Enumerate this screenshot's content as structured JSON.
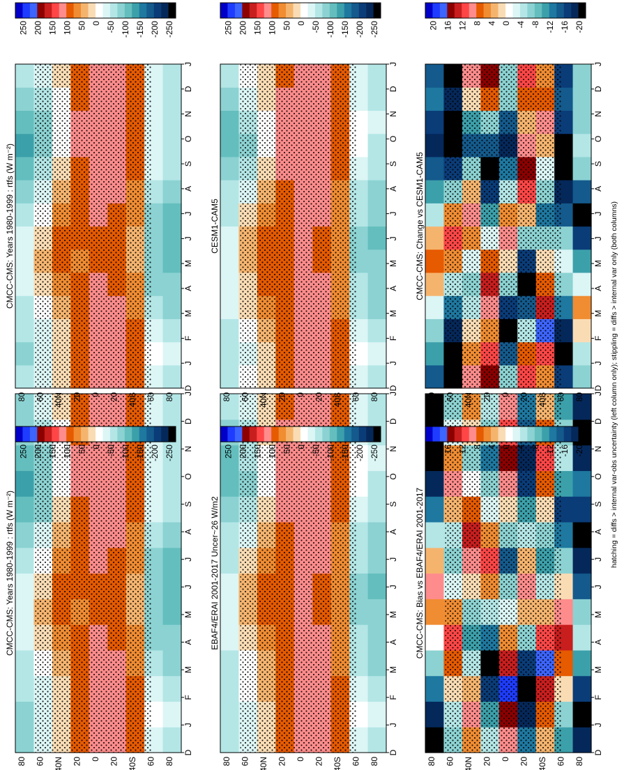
{
  "figure": {
    "footer": "hatching = diffs > internal var-obs uncertainty (left column only); stippling = diffs > internal var only (both columns)"
  },
  "chart_data": [
    {
      "type": "heatmap",
      "panel": "top-left",
      "title": "CMCC-CMS: Years 1980-1999 : rtfs (W m⁻²)",
      "x_ticks": [
        "D",
        "J",
        "F",
        "M",
        "A",
        "M",
        "J",
        "J",
        "A",
        "S",
        "O",
        "N",
        "D",
        "J"
      ],
      "y_ticks": [
        "80",
        "60",
        "40N",
        "20",
        "0",
        "20",
        "40S",
        "60",
        "80"
      ],
      "colorbar": [
        "250",
        "200",
        "150",
        "100",
        "50",
        "0",
        "-50",
        "-100",
        "-150",
        "-200",
        "-250"
      ],
      "value_range": [
        -275,
        275
      ],
      "grid": [
        [
          -75,
          -80,
          -70,
          -60,
          -45,
          -40,
          -45,
          -65,
          -80,
          -110,
          -135,
          -120,
          -90,
          -75
        ],
        [
          -35,
          -45,
          -30,
          -10,
          10,
          30,
          20,
          -5,
          -45,
          -75,
          -95,
          -80,
          -60,
          -35
        ],
        [
          5,
          10,
          20,
          40,
          65,
          85,
          80,
          60,
          30,
          5,
          -20,
          -15,
          -5,
          5
        ],
        [
          95,
          95,
          90,
          85,
          80,
          75,
          80,
          90,
          95,
          100,
          110,
          110,
          100,
          95
        ],
        [
          110,
          115,
          115,
          110,
          105,
          100,
          100,
          105,
          110,
          115,
          110,
          110,
          110,
          110
        ],
        [
          115,
          115,
          110,
          105,
          100,
          95,
          95,
          100,
          110,
          115,
          120,
          120,
          120,
          115
        ],
        [
          90,
          85,
          80,
          70,
          60,
          50,
          50,
          55,
          70,
          80,
          90,
          95,
          95,
          90
        ],
        [
          -30,
          -20,
          -35,
          -55,
          -75,
          -85,
          -85,
          -75,
          -55,
          -35,
          -25,
          -25,
          -30,
          -30
        ],
        [
          -55,
          -45,
          -60,
          -80,
          -95,
          -105,
          -110,
          -105,
          -90,
          -70,
          -55,
          -50,
          -55,
          -55
        ]
      ]
    },
    {
      "type": "heatmap",
      "panel": "top-right",
      "title": "CMCC-CMS: Years 1980-1999 : rtfs (W m⁻²)",
      "x_ticks": [
        "D",
        "J",
        "F",
        "M",
        "A",
        "M",
        "J",
        "J",
        "A",
        "S",
        "O",
        "N",
        "D",
        "J"
      ],
      "y_ticks": [
        "80",
        "60",
        "40N",
        "20",
        "0",
        "20",
        "40S",
        "60",
        "80"
      ],
      "colorbar": [
        "250",
        "200",
        "150",
        "100",
        "50",
        "0",
        "-50",
        "-100",
        "-150",
        "-200",
        "-250"
      ],
      "value_range": [
        -275,
        275
      ],
      "grid": [
        [
          -70,
          -75,
          -65,
          -55,
          -40,
          -35,
          -40,
          -60,
          -75,
          -105,
          -130,
          -115,
          -85,
          -70
        ],
        [
          -30,
          -40,
          -25,
          -5,
          15,
          35,
          25,
          0,
          -40,
          -70,
          -90,
          -75,
          -55,
          -30
        ],
        [
          10,
          15,
          25,
          45,
          70,
          90,
          85,
          65,
          35,
          10,
          -15,
          -10,
          0,
          10
        ],
        [
          95,
          95,
          90,
          85,
          80,
          75,
          80,
          90,
          95,
          100,
          110,
          110,
          100,
          95
        ],
        [
          110,
          115,
          115,
          110,
          105,
          100,
          100,
          105,
          110,
          115,
          110,
          110,
          110,
          110
        ],
        [
          115,
          115,
          110,
          105,
          100,
          95,
          95,
          100,
          110,
          115,
          120,
          120,
          120,
          115
        ],
        [
          90,
          85,
          80,
          70,
          60,
          50,
          50,
          55,
          70,
          80,
          90,
          95,
          95,
          90
        ],
        [
          -30,
          -20,
          -35,
          -55,
          -75,
          -85,
          -85,
          -75,
          -55,
          -35,
          -25,
          -25,
          -30,
          -30
        ],
        [
          -55,
          -45,
          -60,
          -80,
          -95,
          -105,
          -110,
          -105,
          -90,
          -70,
          -55,
          -50,
          -55,
          -55
        ]
      ]
    },
    {
      "type": "heatmap",
      "panel": "middle-left",
      "title": "EBAF4/ERAI 2001-2017 Uncer~26 W/m2",
      "x_ticks": [
        "D",
        "J",
        "F",
        "M",
        "A",
        "M",
        "J",
        "J",
        "A",
        "S",
        "O",
        "N",
        "D",
        "J"
      ],
      "y_ticks": [
        "80",
        "60",
        "40N",
        "20",
        "0",
        "20",
        "40S",
        "60",
        "80"
      ],
      "colorbar": [
        "250",
        "200",
        "150",
        "100",
        "50",
        "0",
        "-50",
        "-100",
        "-150",
        "-200",
        "-250"
      ],
      "value_range": [
        -275,
        275
      ],
      "grid": [
        [
          -65,
          -70,
          -60,
          -50,
          -35,
          -30,
          -35,
          -55,
          -70,
          -100,
          -120,
          -110,
          -80,
          -65
        ],
        [
          -25,
          -35,
          -20,
          0,
          20,
          40,
          30,
          5,
          -35,
          -65,
          -85,
          -70,
          -50,
          -25
        ],
        [
          15,
          20,
          30,
          50,
          75,
          95,
          90,
          70,
          40,
          15,
          -10,
          -5,
          5,
          15
        ],
        [
          100,
          100,
          95,
          90,
          85,
          80,
          85,
          95,
          100,
          105,
          115,
          115,
          105,
          100
        ],
        [
          115,
          120,
          120,
          115,
          110,
          105,
          105,
          110,
          115,
          120,
          115,
          115,
          115,
          115
        ],
        [
          120,
          120,
          115,
          110,
          105,
          100,
          100,
          105,
          115,
          120,
          125,
          125,
          125,
          120
        ],
        [
          95,
          90,
          85,
          75,
          65,
          55,
          55,
          60,
          75,
          85,
          95,
          100,
          100,
          95
        ],
        [
          -25,
          -15,
          -30,
          -50,
          -70,
          -80,
          -80,
          -70,
          -50,
          -30,
          -20,
          -20,
          -25,
          -25
        ],
        [
          -50,
          -40,
          -55,
          -75,
          -90,
          -100,
          -105,
          -100,
          -85,
          -65,
          -50,
          -45,
          -50,
          -50
        ]
      ]
    },
    {
      "type": "heatmap",
      "panel": "middle-right",
      "title": "CESM1-CAM5",
      "x_ticks": [
        "D",
        "J",
        "F",
        "M",
        "A",
        "M",
        "J",
        "J",
        "A",
        "S",
        "O",
        "N",
        "D",
        "J"
      ],
      "y_ticks": [
        "80",
        "60",
        "40N",
        "20",
        "0",
        "20",
        "40S",
        "60",
        "80"
      ],
      "colorbar": [
        "250",
        "200",
        "150",
        "100",
        "50",
        "0",
        "-50",
        "-100",
        "-150",
        "-200",
        "-250"
      ],
      "value_range": [
        -275,
        275
      ],
      "grid": [
        [
          -60,
          -65,
          -55,
          -45,
          -30,
          -25,
          -30,
          -50,
          -65,
          -95,
          -115,
          -105,
          -75,
          -60
        ],
        [
          -20,
          -30,
          -15,
          5,
          25,
          45,
          35,
          10,
          -30,
          -60,
          -80,
          -65,
          -45,
          -20
        ],
        [
          20,
          25,
          35,
          55,
          80,
          100,
          95,
          75,
          45,
          20,
          -5,
          0,
          10,
          20
        ],
        [
          100,
          100,
          95,
          90,
          85,
          80,
          85,
          95,
          100,
          105,
          115,
          115,
          105,
          100
        ],
        [
          115,
          120,
          120,
          115,
          110,
          105,
          105,
          110,
          115,
          120,
          115,
          115,
          115,
          115
        ],
        [
          120,
          120,
          115,
          110,
          105,
          100,
          100,
          105,
          115,
          120,
          125,
          125,
          125,
          120
        ],
        [
          95,
          90,
          85,
          75,
          65,
          55,
          55,
          60,
          75,
          85,
          95,
          100,
          100,
          95
        ],
        [
          -25,
          -15,
          -30,
          -50,
          -70,
          -80,
          -80,
          -70,
          -50,
          -30,
          -20,
          -20,
          -25,
          -25
        ],
        [
          -50,
          -40,
          -55,
          -75,
          -90,
          -100,
          -105,
          -100,
          -85,
          -65,
          -50,
          -45,
          -50,
          -50
        ]
      ]
    },
    {
      "type": "heatmap",
      "panel": "bottom-left",
      "title": "CMCC-CMS: Bias vs EBAF4/ERAI 2001-2017",
      "x_ticks": [
        "D",
        "J",
        "F",
        "M",
        "A",
        "M",
        "J",
        "J",
        "A",
        "S",
        "O",
        "N",
        "D",
        "J"
      ],
      "y_ticks": [
        "80",
        "60",
        "40N",
        "20",
        "0",
        "20",
        "40S",
        "60",
        "80"
      ],
      "colorbar": [
        "20",
        "16",
        "12",
        "8",
        "4",
        "0",
        "-4",
        "-8",
        "-12",
        "-16",
        "-20"
      ],
      "value_range": [
        -22,
        22
      ],
      "grid": [
        [
          -22,
          -18,
          -12,
          -6,
          0,
          6,
          10,
          4,
          -4,
          -12,
          -18,
          -22,
          -20,
          -22
        ],
        [
          -8,
          -4,
          2,
          8,
          12,
          6,
          -2,
          -8,
          -4,
          4,
          10,
          6,
          -2,
          -8
        ],
        [
          6,
          10,
          4,
          -4,
          -10,
          -6,
          2,
          10,
          14,
          8,
          0,
          -6,
          2,
          6
        ],
        [
          -4,
          -10,
          -16,
          -20,
          -12,
          -4,
          6,
          12,
          6,
          -2,
          -8,
          -12,
          -6,
          -4
        ],
        [
          10,
          16,
          20,
          14,
          6,
          -2,
          -8,
          -14,
          -8,
          2,
          10,
          16,
          12,
          10
        ],
        [
          -12,
          -18,
          -22,
          -16,
          -6,
          4,
          10,
          4,
          -4,
          -10,
          -16,
          -18,
          -14,
          -12
        ],
        [
          4,
          8,
          14,
          18,
          12,
          4,
          -4,
          -10,
          -6,
          2,
          8,
          12,
          8,
          4
        ],
        [
          -10,
          -6,
          2,
          8,
          14,
          10,
          2,
          -6,
          -12,
          -16,
          -10,
          -4,
          -8,
          -10
        ],
        [
          -18,
          -20,
          -16,
          -10,
          -4,
          -8,
          -14,
          -18,
          -20,
          -16,
          -12,
          -18,
          -20,
          -18
        ]
      ]
    },
    {
      "type": "heatmap",
      "panel": "bottom-right",
      "title": "CMCC-CMS: Change vs CESM1-CAM5",
      "x_ticks": [
        "D",
        "J",
        "F",
        "M",
        "A",
        "M",
        "J",
        "J",
        "A",
        "S",
        "O",
        "N",
        "D",
        "J"
      ],
      "y_ticks": [
        "80",
        "60",
        "40N",
        "20",
        "0",
        "20",
        "40S",
        "60",
        "80"
      ],
      "colorbar": [
        "20",
        "16",
        "12",
        "8",
        "4",
        "0",
        "-4",
        "-8",
        "-12",
        "-16",
        "-20"
      ],
      "value_range": [
        -22,
        22
      ],
      "grid": [
        [
          -14,
          -10,
          -6,
          -2,
          4,
          8,
          4,
          -4,
          -10,
          -14,
          -18,
          -16,
          -12,
          -14
        ],
        [
          -20,
          -22,
          -18,
          -12,
          -4,
          6,
          12,
          6,
          -6,
          -16,
          -22,
          -20,
          -18,
          -20
        ],
        [
          10,
          6,
          2,
          -4,
          -8,
          -2,
          6,
          10,
          4,
          -6,
          -14,
          -10,
          2,
          10
        ],
        [
          16,
          12,
          6,
          10,
          14,
          8,
          -2,
          -10,
          -16,
          -20,
          -14,
          -6,
          8,
          16
        ],
        [
          -6,
          -14,
          -20,
          -16,
          -8,
          2,
          10,
          6,
          -4,
          -12,
          -18,
          -14,
          -8,
          -6
        ],
        [
          12,
          8,
          -4,
          -14,
          -20,
          -16,
          -6,
          4,
          12,
          16,
          10,
          4,
          8,
          12
        ],
        [
          6,
          12,
          18,
          14,
          8,
          2,
          -6,
          -12,
          -8,
          -2,
          4,
          10,
          8,
          6
        ],
        [
          -16,
          -20,
          -18,
          -12,
          -6,
          -2,
          -8,
          -14,
          -18,
          -22,
          -20,
          -16,
          -14,
          -16
        ],
        [
          -8,
          -4,
          2,
          6,
          -2,
          -10,
          -16,
          -20,
          -14,
          -8,
          -4,
          -6,
          -8,
          -8
        ]
      ]
    }
  ]
}
